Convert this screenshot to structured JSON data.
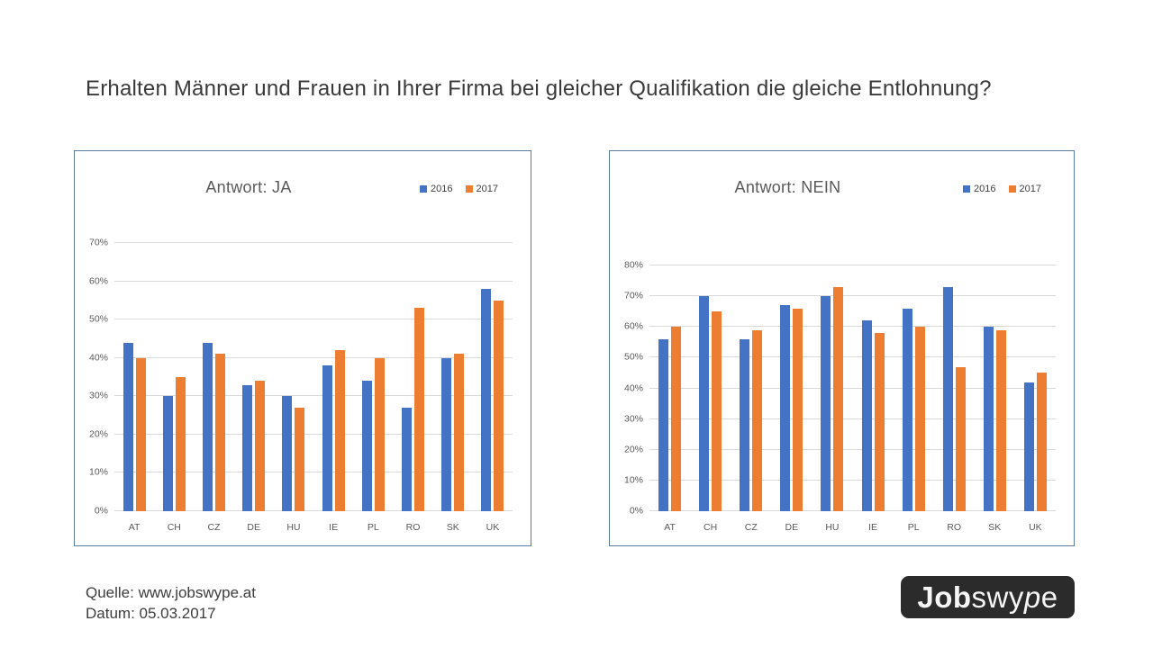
{
  "page": {
    "title": "Erhalten Männer und Frauen in Ihrer Firma bei gleicher Qualifikation die gleiche Entlohnung?",
    "source_line1": "Quelle: www.jobswype.at",
    "source_line2": "Datum: 05.03.2017",
    "logo": {
      "part_bold": "Job",
      "part_swy": "swy",
      "part_p": "p",
      "part_e": "e"
    }
  },
  "colors": {
    "series_2016": "#4472c4",
    "series_2017": "#ed7d31",
    "chart_border": "#5b7c9e",
    "gridline": "#d9d9d9",
    "axis_text": "#595959"
  },
  "chart_data": [
    {
      "type": "bar",
      "title": "Antwort: JA",
      "categories": [
        "AT",
        "CH",
        "CZ",
        "DE",
        "HU",
        "IE",
        "PL",
        "RO",
        "SK",
        "UK"
      ],
      "series": [
        {
          "name": "2016",
          "color": "#4472c4",
          "values": [
            44,
            30,
            44,
            33,
            30,
            38,
            34,
            27,
            40,
            58
          ]
        },
        {
          "name": "2017",
          "color": "#ed7d31",
          "values": [
            40,
            35,
            41,
            34,
            27,
            42,
            40,
            53,
            41,
            55
          ]
        }
      ],
      "ylim": [
        0,
        70
      ],
      "yticks": [
        0,
        10,
        20,
        30,
        40,
        50,
        60,
        70
      ],
      "ytick_suffix": "%",
      "grid": true,
      "legend_position": "top-right"
    },
    {
      "type": "bar",
      "title": "Antwort: NEIN",
      "categories": [
        "AT",
        "CH",
        "CZ",
        "DE",
        "HU",
        "IE",
        "PL",
        "RO",
        "SK",
        "UK"
      ],
      "series": [
        {
          "name": "2016",
          "color": "#4472c4",
          "values": [
            56,
            70,
            56,
            67,
            70,
            62,
            66,
            73,
            60,
            42
          ]
        },
        {
          "name": "2017",
          "color": "#ed7d31",
          "values": [
            60,
            65,
            59,
            66,
            73,
            58,
            60,
            47,
            59,
            45
          ]
        }
      ],
      "ylim": [
        0,
        80
      ],
      "yticks": [
        0,
        10,
        20,
        30,
        40,
        50,
        60,
        70,
        80
      ],
      "ytick_suffix": "%",
      "grid": true,
      "legend_position": "top-right"
    }
  ]
}
